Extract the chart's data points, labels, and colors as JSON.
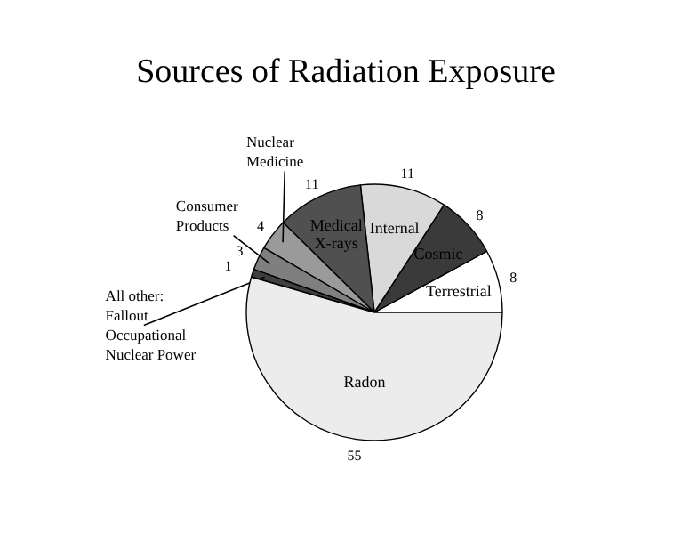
{
  "chart_data": {
    "type": "pie",
    "title": "Sources of Radiation Exposure",
    "categories": [
      "Terrestrial",
      "Cosmic",
      "Internal",
      "Medical\nX-rays",
      "Nuclear\nMedicine",
      "Consumer\nProducts",
      "All other:\nFallout\nOccupational\nNuclear Power",
      "Radon"
    ],
    "values": [
      8,
      8,
      11,
      11,
      4,
      3,
      1,
      55
    ],
    "colors": [
      "#ffffff",
      "#3a3a3a",
      "#d9d9d9",
      "#505050",
      "#9a9a9a",
      "#7f7f7f",
      "#404040",
      "#ececec"
    ],
    "data_labels": true
  }
}
